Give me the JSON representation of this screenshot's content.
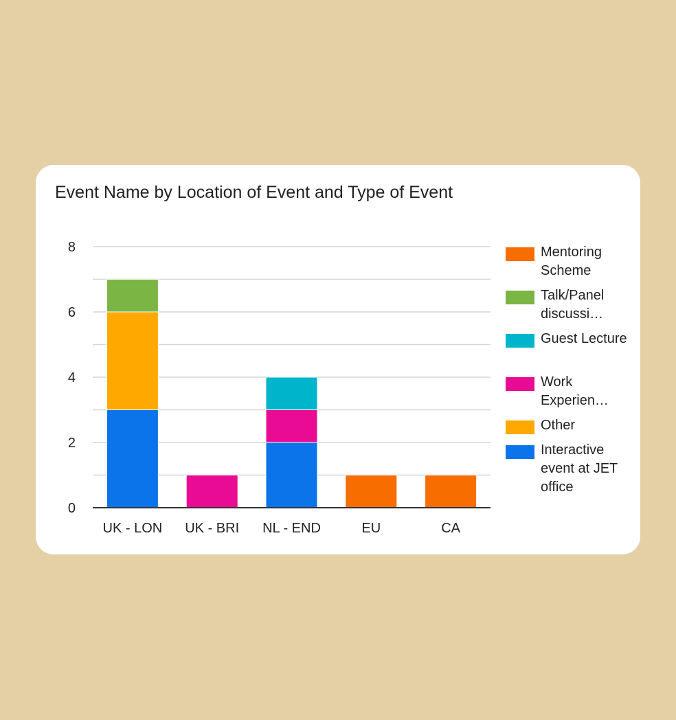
{
  "chart_data": {
    "type": "bar",
    "stacked": true,
    "title": "Event Name by Location of Event and Type of Event",
    "xlabel": "",
    "ylabel": "",
    "categories": [
      "UK - LON",
      "UK - BRI",
      "NL - END",
      "EU",
      "CA"
    ],
    "ylim": [
      0,
      8
    ],
    "yticks": [
      "0",
      "2",
      "4",
      "6",
      "8"
    ],
    "grid": true,
    "legend_position": "right",
    "series": [
      {
        "name": "Interactive event at JET office",
        "color": "#0b74ea",
        "values": [
          3,
          0,
          2,
          0,
          0
        ]
      },
      {
        "name": "Other",
        "color": "#ffa800",
        "values": [
          3,
          0,
          0,
          0,
          0
        ]
      },
      {
        "name": "Work Experien…",
        "color": "#ea0b95",
        "values": [
          0,
          1,
          1,
          0,
          0
        ]
      },
      {
        "name": "Guest Lecture",
        "color": "#00b5cb",
        "values": [
          0,
          0,
          1,
          0,
          0
        ]
      },
      {
        "name": "Talk/Panel discussi…",
        "color": "#7bb544",
        "values": [
          1,
          0,
          0,
          0,
          0
        ]
      },
      {
        "name": "Mentoring Scheme",
        "color": "#f76d00",
        "values": [
          0,
          0,
          0,
          1,
          1
        ]
      }
    ]
  }
}
